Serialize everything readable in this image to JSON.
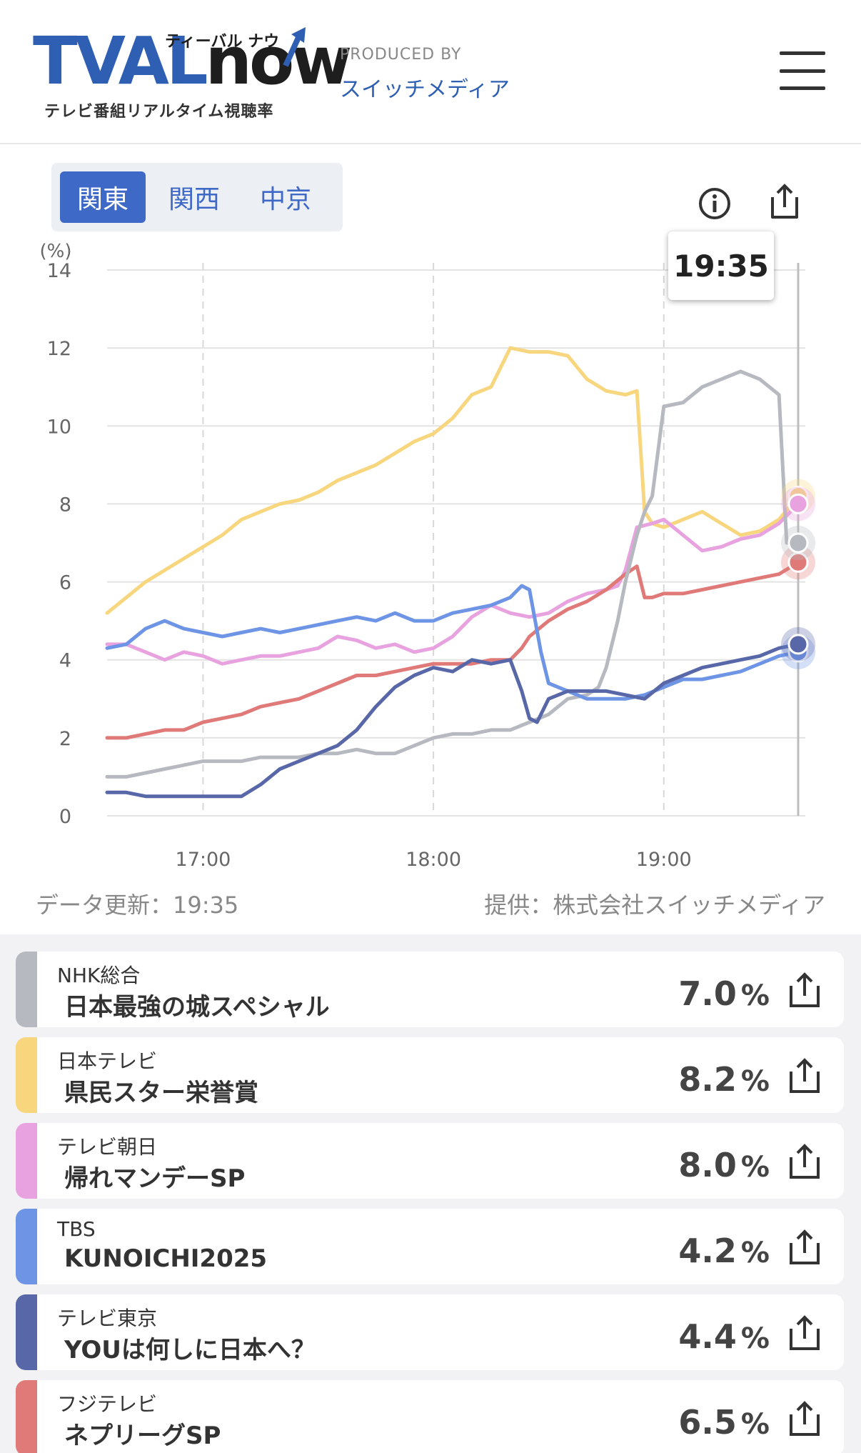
{
  "header": {
    "logo_main_a": "TVAL",
    "logo_main_b": "now",
    "logo_kana": "ティーバル ナウ",
    "logo_sub": "テレビ番組リアルタイム視聴率",
    "produced_by": "PRODUCED BY",
    "producer": "スイッチメディア",
    "menu_icon": "hamburger-menu-icon"
  },
  "regions": [
    {
      "label": "関東",
      "active": true
    },
    {
      "label": "関西",
      "active": false
    },
    {
      "label": "中京",
      "active": false
    }
  ],
  "icons": {
    "info": "info-icon",
    "share": "share-icon"
  },
  "current_time": "19:35",
  "updated": "データ更新：19:35",
  "provider": "提供：株式会社スイッチメディア",
  "colors": {
    "nhk": "#b6b9c0",
    "ntv": "#f7d67e",
    "tva": "#e8a2df",
    "tbs": "#6e94e6",
    "tx": "#5867a8",
    "cx": "#e07a78",
    "accent": "#3f69c6"
  },
  "chart_data": {
    "type": "line",
    "ylabel": "(%)",
    "ylim": [
      0,
      14
    ],
    "yticks": [
      "0",
      "2",
      "4",
      "6",
      "8",
      "10",
      "12",
      "14"
    ],
    "xlim": [
      "16:35",
      "19:35"
    ],
    "xticks": [
      {
        "label": "17:00",
        "minute": 25
      },
      {
        "label": "18:00",
        "minute": 85
      },
      {
        "label": "19:00",
        "minute": 145
      }
    ],
    "series": [
      {
        "key": "ntv",
        "color": "#f7d67e",
        "points": [
          [
            0,
            5.2
          ],
          [
            5,
            5.6
          ],
          [
            10,
            6.0
          ],
          [
            15,
            6.3
          ],
          [
            20,
            6.6
          ],
          [
            25,
            6.9
          ],
          [
            30,
            7.2
          ],
          [
            35,
            7.6
          ],
          [
            40,
            7.8
          ],
          [
            45,
            8.0
          ],
          [
            50,
            8.1
          ],
          [
            55,
            8.3
          ],
          [
            60,
            8.6
          ],
          [
            65,
            8.8
          ],
          [
            70,
            9.0
          ],
          [
            75,
            9.3
          ],
          [
            80,
            9.6
          ],
          [
            85,
            9.8
          ],
          [
            90,
            10.2
          ],
          [
            95,
            10.8
          ],
          [
            100,
            11.0
          ],
          [
            105,
            12.0
          ],
          [
            110,
            11.9
          ],
          [
            115,
            11.9
          ],
          [
            120,
            11.8
          ],
          [
            125,
            11.2
          ],
          [
            130,
            10.9
          ],
          [
            135,
            10.8
          ],
          [
            138,
            10.9
          ],
          [
            140,
            7.8
          ],
          [
            142,
            7.5
          ],
          [
            145,
            7.4
          ],
          [
            150,
            7.6
          ],
          [
            155,
            7.8
          ],
          [
            160,
            7.5
          ],
          [
            165,
            7.2
          ],
          [
            170,
            7.3
          ],
          [
            175,
            7.6
          ],
          [
            180,
            8.2
          ]
        ]
      },
      {
        "key": "tva",
        "color": "#e8a2df",
        "points": [
          [
            0,
            4.4
          ],
          [
            5,
            4.4
          ],
          [
            10,
            4.2
          ],
          [
            15,
            4.0
          ],
          [
            20,
            4.2
          ],
          [
            25,
            4.1
          ],
          [
            30,
            3.9
          ],
          [
            35,
            4.0
          ],
          [
            40,
            4.1
          ],
          [
            45,
            4.1
          ],
          [
            50,
            4.2
          ],
          [
            55,
            4.3
          ],
          [
            60,
            4.6
          ],
          [
            65,
            4.5
          ],
          [
            70,
            4.3
          ],
          [
            75,
            4.4
          ],
          [
            80,
            4.2
          ],
          [
            85,
            4.3
          ],
          [
            90,
            4.6
          ],
          [
            95,
            5.1
          ],
          [
            100,
            5.4
          ],
          [
            105,
            5.2
          ],
          [
            110,
            5.1
          ],
          [
            115,
            5.2
          ],
          [
            120,
            5.5
          ],
          [
            125,
            5.7
          ],
          [
            130,
            5.8
          ],
          [
            133,
            5.9
          ],
          [
            135,
            6.3
          ],
          [
            138,
            7.4
          ],
          [
            142,
            7.5
          ],
          [
            145,
            7.6
          ],
          [
            150,
            7.2
          ],
          [
            155,
            6.8
          ],
          [
            160,
            6.9
          ],
          [
            165,
            7.1
          ],
          [
            170,
            7.2
          ],
          [
            175,
            7.5
          ],
          [
            180,
            8.0
          ]
        ]
      },
      {
        "key": "cx",
        "color": "#e07a78",
        "points": [
          [
            0,
            2.0
          ],
          [
            5,
            2.0
          ],
          [
            10,
            2.1
          ],
          [
            15,
            2.2
          ],
          [
            20,
            2.2
          ],
          [
            25,
            2.4
          ],
          [
            30,
            2.5
          ],
          [
            35,
            2.6
          ],
          [
            40,
            2.8
          ],
          [
            45,
            2.9
          ],
          [
            50,
            3.0
          ],
          [
            55,
            3.2
          ],
          [
            60,
            3.4
          ],
          [
            65,
            3.6
          ],
          [
            70,
            3.6
          ],
          [
            75,
            3.7
          ],
          [
            80,
            3.8
          ],
          [
            85,
            3.9
          ],
          [
            90,
            3.9
          ],
          [
            95,
            3.9
          ],
          [
            100,
            4.0
          ],
          [
            105,
            4.0
          ],
          [
            108,
            4.3
          ],
          [
            110,
            4.6
          ],
          [
            115,
            5.0
          ],
          [
            120,
            5.3
          ],
          [
            125,
            5.5
          ],
          [
            130,
            5.8
          ],
          [
            135,
            6.2
          ],
          [
            138,
            6.4
          ],
          [
            140,
            5.6
          ],
          [
            142,
            5.6
          ],
          [
            145,
            5.7
          ],
          [
            150,
            5.7
          ],
          [
            155,
            5.8
          ],
          [
            160,
            5.9
          ],
          [
            165,
            6.0
          ],
          [
            170,
            6.1
          ],
          [
            175,
            6.2
          ],
          [
            180,
            6.5
          ]
        ]
      },
      {
        "key": "nhk",
        "color": "#b6b9c0",
        "points": [
          [
            0,
            1.0
          ],
          [
            5,
            1.0
          ],
          [
            10,
            1.1
          ],
          [
            15,
            1.2
          ],
          [
            20,
            1.3
          ],
          [
            25,
            1.4
          ],
          [
            30,
            1.4
          ],
          [
            35,
            1.4
          ],
          [
            40,
            1.5
          ],
          [
            45,
            1.5
          ],
          [
            50,
            1.5
          ],
          [
            55,
            1.6
          ],
          [
            60,
            1.6
          ],
          [
            65,
            1.7
          ],
          [
            70,
            1.6
          ],
          [
            75,
            1.6
          ],
          [
            80,
            1.8
          ],
          [
            85,
            2.0
          ],
          [
            90,
            2.1
          ],
          [
            95,
            2.1
          ],
          [
            100,
            2.2
          ],
          [
            105,
            2.2
          ],
          [
            110,
            2.4
          ],
          [
            115,
            2.6
          ],
          [
            120,
            3.0
          ],
          [
            125,
            3.1
          ],
          [
            128,
            3.3
          ],
          [
            130,
            3.8
          ],
          [
            133,
            5.0
          ],
          [
            135,
            6.0
          ],
          [
            138,
            7.2
          ],
          [
            140,
            7.8
          ],
          [
            142,
            8.2
          ],
          [
            145,
            10.5
          ],
          [
            150,
            10.6
          ],
          [
            155,
            11.0
          ],
          [
            160,
            11.2
          ],
          [
            165,
            11.4
          ],
          [
            170,
            11.2
          ],
          [
            175,
            10.8
          ],
          [
            177,
            7.0
          ],
          [
            180,
            7.0
          ]
        ]
      },
      {
        "key": "tbs",
        "color": "#6e94e6",
        "points": [
          [
            0,
            4.3
          ],
          [
            5,
            4.4
          ],
          [
            10,
            4.8
          ],
          [
            15,
            5.0
          ],
          [
            20,
            4.8
          ],
          [
            25,
            4.7
          ],
          [
            30,
            4.6
          ],
          [
            35,
            4.7
          ],
          [
            40,
            4.8
          ],
          [
            45,
            4.7
          ],
          [
            50,
            4.8
          ],
          [
            55,
            4.9
          ],
          [
            60,
            5.0
          ],
          [
            65,
            5.1
          ],
          [
            70,
            5.0
          ],
          [
            75,
            5.2
          ],
          [
            80,
            5.0
          ],
          [
            85,
            5.0
          ],
          [
            90,
            5.2
          ],
          [
            95,
            5.3
          ],
          [
            100,
            5.4
          ],
          [
            105,
            5.6
          ],
          [
            108,
            5.9
          ],
          [
            110,
            5.8
          ],
          [
            113,
            4.2
          ],
          [
            115,
            3.4
          ],
          [
            120,
            3.2
          ],
          [
            125,
            3.0
          ],
          [
            130,
            3.0
          ],
          [
            135,
            3.0
          ],
          [
            140,
            3.1
          ],
          [
            145,
            3.3
          ],
          [
            150,
            3.5
          ],
          [
            155,
            3.5
          ],
          [
            160,
            3.6
          ],
          [
            165,
            3.7
          ],
          [
            170,
            3.9
          ],
          [
            175,
            4.1
          ],
          [
            180,
            4.2
          ]
        ]
      },
      {
        "key": "tx",
        "color": "#5867a8",
        "points": [
          [
            0,
            0.6
          ],
          [
            5,
            0.6
          ],
          [
            10,
            0.5
          ],
          [
            15,
            0.5
          ],
          [
            20,
            0.5
          ],
          [
            25,
            0.5
          ],
          [
            30,
            0.5
          ],
          [
            35,
            0.5
          ],
          [
            40,
            0.8
          ],
          [
            45,
            1.2
          ],
          [
            50,
            1.4
          ],
          [
            55,
            1.6
          ],
          [
            60,
            1.8
          ],
          [
            65,
            2.2
          ],
          [
            70,
            2.8
          ],
          [
            75,
            3.3
          ],
          [
            80,
            3.6
          ],
          [
            85,
            3.8
          ],
          [
            90,
            3.7
          ],
          [
            95,
            4.0
          ],
          [
            100,
            3.9
          ],
          [
            105,
            4.0
          ],
          [
            108,
            3.2
          ],
          [
            110,
            2.5
          ],
          [
            112,
            2.4
          ],
          [
            115,
            3.0
          ],
          [
            120,
            3.2
          ],
          [
            125,
            3.2
          ],
          [
            130,
            3.2
          ],
          [
            135,
            3.1
          ],
          [
            140,
            3.0
          ],
          [
            145,
            3.4
          ],
          [
            150,
            3.6
          ],
          [
            155,
            3.8
          ],
          [
            160,
            3.9
          ],
          [
            165,
            4.0
          ],
          [
            170,
            4.1
          ],
          [
            175,
            4.3
          ],
          [
            180,
            4.4
          ]
        ]
      }
    ]
  },
  "programs": [
    {
      "key": "nhk",
      "channel": "NHK総合",
      "program": "日本最強の城スペシャル",
      "rating": "7.0",
      "unit": "%"
    },
    {
      "key": "ntv",
      "channel": "日本テレビ",
      "program": "県民スター栄誉賞",
      "rating": "8.2",
      "unit": "%"
    },
    {
      "key": "tva",
      "channel": "テレビ朝日",
      "program": "帰れマンデーSP",
      "rating": "8.0",
      "unit": "%"
    },
    {
      "key": "tbs",
      "channel": "TBS",
      "program": "KUNOICHI2025",
      "rating": "4.2",
      "unit": "%"
    },
    {
      "key": "tx",
      "channel": "テレビ東京",
      "program": "YOUは何しに日本へ？",
      "rating": "4.4",
      "unit": "%"
    },
    {
      "key": "cx",
      "channel": "フジテレビ",
      "program": "ネプリーグSP",
      "rating": "6.5",
      "unit": "%"
    }
  ]
}
